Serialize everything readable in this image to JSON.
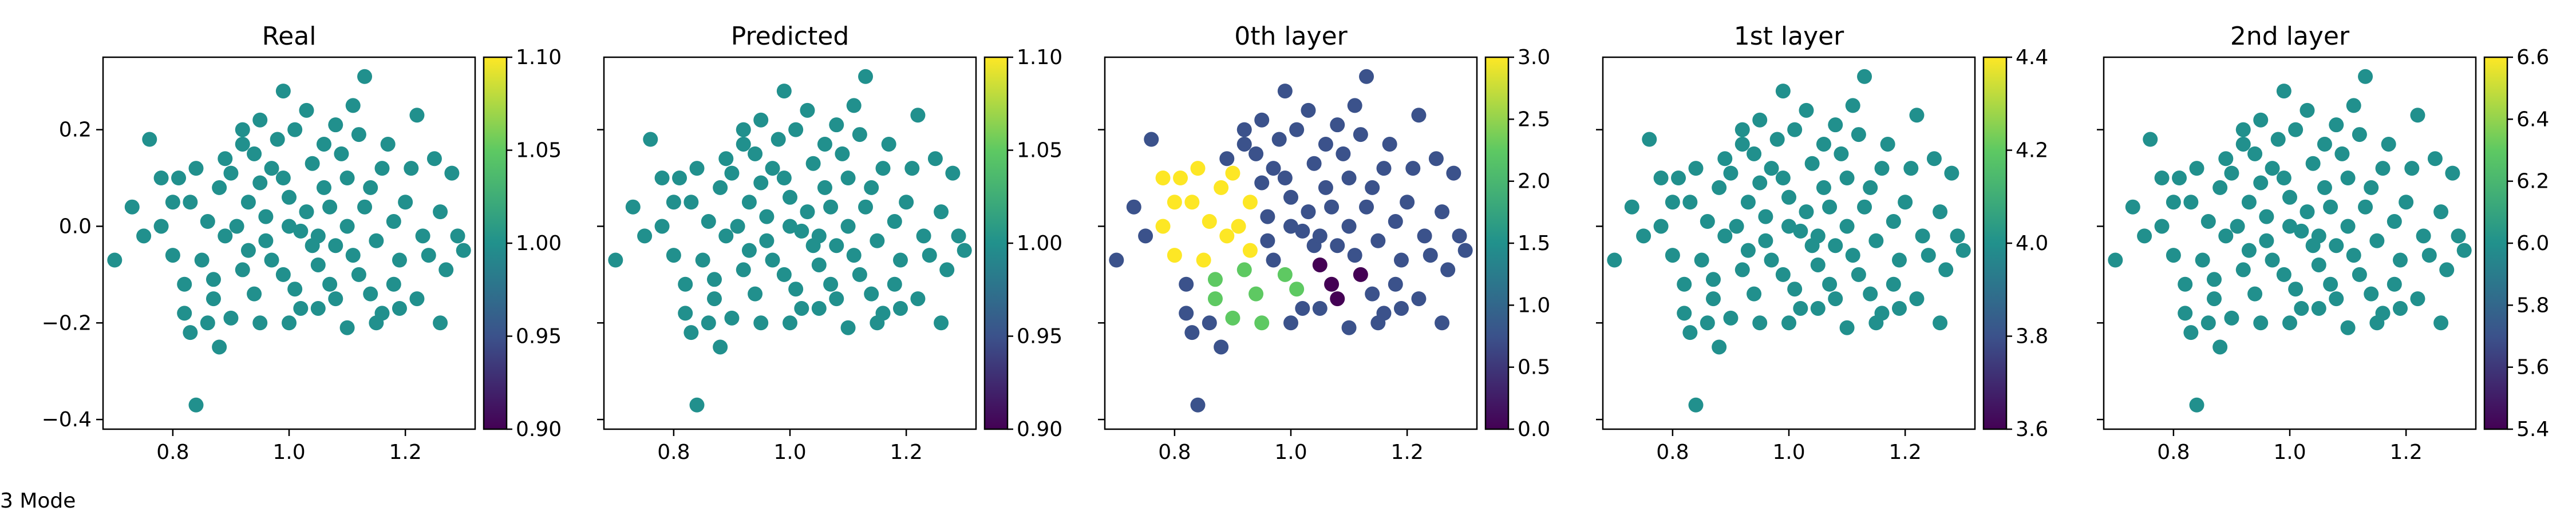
{
  "caption": "3 Mode",
  "colormap": [
    "#440154",
    "#3b528b",
    "#21918c",
    "#5ec962",
    "#fde725"
  ],
  "point_color": "#21908d",
  "chart_data": [
    {
      "type": "scatter",
      "title": "Real",
      "xlim": [
        0.68,
        1.32
      ],
      "ylim": [
        -0.42,
        0.35
      ],
      "xticks": [
        {
          "v": 0.8,
          "label": "0.8"
        },
        {
          "v": 1.0,
          "label": "1.0"
        },
        {
          "v": 1.2,
          "label": "1.2"
        }
      ],
      "yticks": [
        {
          "v": -0.4,
          "label": "−0.4"
        },
        {
          "v": -0.2,
          "label": "−0.2"
        },
        {
          "v": 0.0,
          "label": "0.0"
        },
        {
          "v": 0.2,
          "label": "0.2"
        }
      ],
      "show_yticklabels": true,
      "colorbar": {
        "range": [
          0.9,
          1.1
        ],
        "ticks": [
          {
            "v": 0.9,
            "label": "0.90"
          },
          {
            "v": 0.95,
            "label": "0.95"
          },
          {
            "v": 1.0,
            "label": "1.00"
          },
          {
            "v": 1.05,
            "label": "1.05"
          },
          {
            "v": 1.1,
            "label": "1.10"
          }
        ]
      },
      "coloring": "uniform"
    },
    {
      "type": "scatter",
      "title": "Predicted",
      "xlim": [
        0.68,
        1.32
      ],
      "ylim": [
        -0.42,
        0.35
      ],
      "xticks": [
        {
          "v": 0.8,
          "label": "0.8"
        },
        {
          "v": 1.0,
          "label": "1.0"
        },
        {
          "v": 1.2,
          "label": "1.2"
        }
      ],
      "yticks": [
        {
          "v": -0.4,
          "label": ""
        },
        {
          "v": -0.2,
          "label": ""
        },
        {
          "v": 0.0,
          "label": ""
        },
        {
          "v": 0.2,
          "label": ""
        }
      ],
      "show_yticklabels": false,
      "colorbar": {
        "range": [
          0.9,
          1.1
        ],
        "ticks": [
          {
            "v": 0.9,
            "label": "0.90"
          },
          {
            "v": 0.95,
            "label": "0.95"
          },
          {
            "v": 1.0,
            "label": "1.00"
          },
          {
            "v": 1.05,
            "label": "1.05"
          },
          {
            "v": 1.1,
            "label": "1.10"
          }
        ]
      },
      "coloring": "uniform"
    },
    {
      "type": "scatter",
      "title": "0th layer",
      "xlim": [
        0.68,
        1.32
      ],
      "ylim": [
        -0.42,
        0.35
      ],
      "xticks": [
        {
          "v": 0.8,
          "label": "0.8"
        },
        {
          "v": 1.0,
          "label": "1.0"
        },
        {
          "v": 1.2,
          "label": "1.2"
        }
      ],
      "yticks": [
        {
          "v": -0.4,
          "label": ""
        },
        {
          "v": -0.2,
          "label": ""
        },
        {
          "v": 0.0,
          "label": ""
        },
        {
          "v": 0.2,
          "label": ""
        }
      ],
      "show_yticklabels": false,
      "colorbar": {
        "range": [
          0.0,
          3.0
        ],
        "ticks": [
          {
            "v": 0.0,
            "label": "0.0"
          },
          {
            "v": 0.5,
            "label": "0.5"
          },
          {
            "v": 1.0,
            "label": "1.0"
          },
          {
            "v": 1.5,
            "label": "1.5"
          },
          {
            "v": 2.0,
            "label": "2.0"
          },
          {
            "v": 2.5,
            "label": "2.5"
          },
          {
            "v": 3.0,
            "label": "3.0"
          }
        ]
      },
      "coloring": "clusters"
    },
    {
      "type": "scatter",
      "title": "1st layer",
      "xlim": [
        0.68,
        1.32
      ],
      "ylim": [
        -0.42,
        0.35
      ],
      "xticks": [
        {
          "v": 0.8,
          "label": "0.8"
        },
        {
          "v": 1.0,
          "label": "1.0"
        },
        {
          "v": 1.2,
          "label": "1.2"
        }
      ],
      "yticks": [
        {
          "v": -0.4,
          "label": ""
        },
        {
          "v": -0.2,
          "label": ""
        },
        {
          "v": 0.0,
          "label": ""
        },
        {
          "v": 0.2,
          "label": ""
        }
      ],
      "show_yticklabels": false,
      "colorbar": {
        "range": [
          3.6,
          4.4
        ],
        "ticks": [
          {
            "v": 3.6,
            "label": "3.6"
          },
          {
            "v": 3.8,
            "label": "3.8"
          },
          {
            "v": 4.0,
            "label": "4.0"
          },
          {
            "v": 4.2,
            "label": "4.2"
          },
          {
            "v": 4.4,
            "label": "4.4"
          }
        ]
      },
      "coloring": "uniform"
    },
    {
      "type": "scatter",
      "title": "2nd layer",
      "xlim": [
        0.68,
        1.32
      ],
      "ylim": [
        -0.42,
        0.35
      ],
      "xticks": [
        {
          "v": 0.8,
          "label": "0.8"
        },
        {
          "v": 1.0,
          "label": "1.0"
        },
        {
          "v": 1.2,
          "label": "1.2"
        }
      ],
      "yticks": [
        {
          "v": -0.4,
          "label": ""
        },
        {
          "v": -0.2,
          "label": ""
        },
        {
          "v": 0.0,
          "label": ""
        },
        {
          "v": 0.2,
          "label": ""
        }
      ],
      "show_yticklabels": false,
      "colorbar": {
        "range": [
          5.4,
          6.6
        ],
        "ticks": [
          {
            "v": 5.4,
            "label": "5.4"
          },
          {
            "v": 5.6,
            "label": "5.6"
          },
          {
            "v": 5.8,
            "label": "5.8"
          },
          {
            "v": 6.0,
            "label": "6.0"
          },
          {
            "v": 6.2,
            "label": "6.2"
          },
          {
            "v": 6.4,
            "label": "6.4"
          },
          {
            "v": 6.6,
            "label": "6.6"
          }
        ]
      },
      "coloring": "uniform"
    }
  ],
  "points": [
    [
      0.7,
      -0.07
    ],
    [
      0.84,
      -0.37
    ],
    [
      0.88,
      -0.25
    ],
    [
      1.13,
      0.31
    ],
    [
      1.26,
      -0.2
    ],
    [
      1.3,
      -0.05
    ],
    [
      0.76,
      0.18
    ],
    [
      0.78,
      0.1
    ],
    [
      0.8,
      0.05
    ],
    [
      0.73,
      0.04
    ],
    [
      0.82,
      -0.18
    ],
    [
      0.83,
      -0.22
    ],
    [
      1.22,
      0.23
    ],
    [
      1.25,
      0.14
    ],
    [
      1.28,
      0.11
    ],
    [
      1.29,
      -0.02
    ],
    [
      1.22,
      -0.15
    ],
    [
      1.15,
      -0.2
    ],
    [
      0.99,
      0.28
    ],
    [
      1.03,
      0.24
    ],
    [
      0.95,
      0.22
    ],
    [
      1.08,
      0.21
    ],
    [
      0.92,
      0.17
    ],
    [
      1.11,
      0.25
    ],
    [
      0.84,
      0.12
    ],
    [
      0.86,
      0.01
    ],
    [
      0.8,
      -0.06
    ],
    [
      0.82,
      -0.12
    ],
    [
      0.87,
      -0.15
    ],
    [
      0.9,
      -0.19
    ],
    [
      0.95,
      -0.2
    ],
    [
      1.0,
      -0.2
    ],
    [
      1.05,
      -0.17
    ],
    [
      1.1,
      -0.21
    ],
    [
      1.18,
      -0.12
    ],
    [
      1.24,
      -0.06
    ],
    [
      1.26,
      0.03
    ],
    [
      1.21,
      0.12
    ],
    [
      1.17,
      0.17
    ],
    [
      0.97,
      0.12
    ],
    [
      1.04,
      0.13
    ],
    [
      1.1,
      0.1
    ],
    [
      0.93,
      0.05
    ],
    [
      1.0,
      0.06
    ],
    [
      1.07,
      0.04
    ],
    [
      1.13,
      0.04
    ],
    [
      0.89,
      -0.02
    ],
    [
      0.96,
      -0.03
    ],
    [
      1.02,
      -0.01
    ],
    [
      1.08,
      -0.04
    ],
    [
      1.15,
      -0.03
    ],
    [
      0.92,
      -0.09
    ],
    [
      0.99,
      -0.1
    ],
    [
      1.05,
      -0.08
    ],
    [
      1.12,
      -0.1
    ],
    [
      1.19,
      -0.07
    ],
    [
      0.88,
      0.08
    ],
    [
      1.2,
      0.05
    ],
    [
      0.94,
      -0.14
    ],
    [
      1.01,
      -0.13
    ],
    [
      1.07,
      -0.12
    ],
    [
      1.14,
      -0.14
    ],
    [
      0.98,
      0.18
    ],
    [
      1.06,
      0.17
    ],
    [
      0.9,
      0.11
    ],
    [
      1.16,
      0.12
    ],
    [
      0.85,
      -0.07
    ],
    [
      0.96,
      0.02
    ],
    [
      1.03,
      0.03
    ],
    [
      1.11,
      -0.06
    ],
    [
      0.78,
      0.0
    ],
    [
      0.75,
      -0.02
    ],
    [
      1.27,
      -0.09
    ],
    [
      1.01,
      0.2
    ],
    [
      0.89,
      0.14
    ],
    [
      1.19,
      -0.17
    ],
    [
      0.86,
      -0.2
    ],
    [
      1.09,
      0.15
    ],
    [
      0.93,
      -0.05
    ],
    [
      1.04,
      -0.04
    ],
    [
      0.97,
      -0.07
    ],
    [
      1.1,
      0.0
    ],
    [
      1.0,
      0.0
    ],
    [
      0.95,
      0.09
    ],
    [
      1.06,
      0.08
    ],
    [
      0.91,
      0.0
    ],
    [
      1.14,
      0.08
    ],
    [
      0.83,
      0.05
    ],
    [
      1.23,
      -0.02
    ],
    [
      1.02,
      -0.17
    ],
    [
      0.94,
      0.15
    ],
    [
      1.12,
      0.19
    ],
    [
      0.81,
      0.1
    ],
    [
      1.18,
      0.01
    ],
    [
      0.87,
      -0.11
    ],
    [
      1.16,
      -0.18
    ],
    [
      0.99,
      0.1
    ],
    [
      1.05,
      -0.02
    ],
    [
      0.92,
      0.2
    ],
    [
      1.08,
      -0.15
    ]
  ],
  "clusters_0th": {
    "dark": [
      1.08,
      -0.1
    ],
    "green": [
      0.93,
      -0.12
    ],
    "yellow": [
      0.86,
      0.03
    ]
  }
}
